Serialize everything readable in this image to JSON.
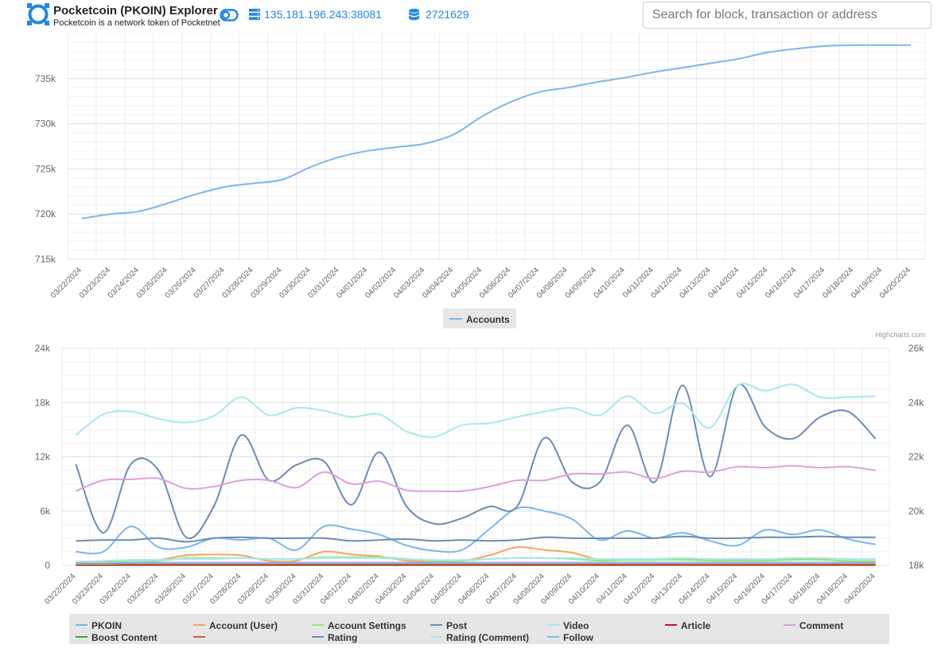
{
  "header": {
    "title": "Pocketcoin (PKOIN) Explorer",
    "subtitle": "Pocketcoin is a network token of Pocketnet",
    "node": "135.181.196.243:38081",
    "block_height": "2721629",
    "search_placeholder": "Search for block, transaction or address"
  },
  "colors": {
    "link": "#1e88e5",
    "logo": "#1e88e5"
  },
  "chart_data": [
    {
      "type": "line",
      "credits": "Highcharts.com",
      "categories": [
        "03/22/2024",
        "03/23/2024",
        "03/24/2024",
        "03/25/2024",
        "03/26/2024",
        "03/27/2024",
        "03/28/2024",
        "03/29/2024",
        "03/30/2024",
        "03/31/2024",
        "04/01/2024",
        "04/02/2024",
        "04/03/2024",
        "04/04/2024",
        "04/05/2024",
        "04/06/2024",
        "04/07/2024",
        "04/08/2024",
        "04/09/2024",
        "04/10/2024",
        "04/11/2024",
        "04/12/2024",
        "04/13/2024",
        "04/14/2024",
        "04/15/2024",
        "04/16/2024",
        "04/17/2024",
        "04/18/2024",
        "04/19/2024",
        "04/20/2024"
      ],
      "yticks": [
        "715k",
        "720k",
        "725k",
        "730k",
        "735k"
      ],
      "ylim": [
        715000,
        740000
      ],
      "legend_position": "bottom-center",
      "series": [
        {
          "name": "Accounts",
          "color": "#7cb5ec",
          "values": [
            719500,
            720000,
            720300,
            721200,
            722200,
            723000,
            723400,
            723800,
            725200,
            726300,
            727000,
            727400,
            727800,
            728800,
            730800,
            732400,
            733500,
            734000,
            734600,
            735100,
            735700,
            736200,
            736700,
            737200,
            737900,
            738300,
            738600,
            738700,
            738700,
            738700
          ]
        }
      ]
    },
    {
      "type": "line",
      "categories": [
        "03/22/2024",
        "03/23/2024",
        "03/24/2024",
        "03/25/2024",
        "03/26/2024",
        "03/27/2024",
        "03/28/2024",
        "03/29/2024",
        "03/30/2024",
        "03/31/2024",
        "04/01/2024",
        "04/02/2024",
        "04/03/2024",
        "04/04/2024",
        "04/05/2024",
        "04/06/2024",
        "04/07/2024",
        "04/08/2024",
        "04/09/2024",
        "04/10/2024",
        "04/11/2024",
        "04/12/2024",
        "04/13/2024",
        "04/14/2024",
        "04/15/2024",
        "04/16/2024",
        "04/17/2024",
        "04/18/2024",
        "04/19/2024",
        "04/20/2024"
      ],
      "yticks_left": [
        "0",
        "6k",
        "12k",
        "18k",
        "24k"
      ],
      "ylim_left": [
        0,
        24000
      ],
      "yticks_right": [
        "18k",
        "20k",
        "22k",
        "24k",
        "26k"
      ],
      "ylim_right": [
        18000,
        26000
      ],
      "legend_position": "bottom",
      "series": [
        {
          "name": "PKOIN",
          "color": "#7cb5ec",
          "axis": "left",
          "values": [
            1500,
            1500,
            4300,
            2000,
            2000,
            3000,
            2800,
            3000,
            1700,
            4300,
            4000,
            3400,
            2200,
            1600,
            1700,
            4000,
            6300,
            6000,
            5100,
            2800,
            3800,
            3000,
            3600,
            2700,
            2200,
            3900,
            3400,
            3900,
            2900,
            2300
          ]
        },
        {
          "name": "Account (User)",
          "color": "#f7a35c",
          "axis": "left",
          "values": [
            300,
            300,
            600,
            600,
            1100,
            1200,
            1100,
            500,
            500,
            1500,
            1200,
            1000,
            500,
            400,
            500,
            1100,
            2000,
            1700,
            1400,
            600,
            600,
            600,
            700,
            600,
            600,
            600,
            700,
            700,
            400,
            400
          ]
        },
        {
          "name": "Account Settings",
          "color": "#90ed7d",
          "axis": "left",
          "values": [
            100,
            200,
            500,
            500,
            800,
            800,
            800,
            700,
            700,
            900,
            900,
            900,
            700,
            500,
            500,
            700,
            800,
            800,
            700,
            500,
            600,
            600,
            600,
            500,
            500,
            500,
            600,
            600,
            500,
            500
          ]
        },
        {
          "name": "Post",
          "color": "#6b8cb4",
          "axis": "left",
          "values": [
            11200,
            3600,
            11200,
            10500,
            3100,
            6500,
            14400,
            9400,
            11100,
            11500,
            6700,
            12500,
            6500,
            4600,
            5200,
            6500,
            6500,
            14100,
            9200,
            9200,
            15500,
            9200,
            19900,
            9800,
            19900,
            15300,
            14000,
            16400,
            17000,
            14000
          ]
        },
        {
          "name": "Video",
          "color": "#a8e8ee",
          "axis": "left",
          "values": [
            14400,
            16700,
            17000,
            16200,
            15800,
            16500,
            18600,
            16600,
            17400,
            17100,
            16400,
            16700,
            14800,
            14200,
            15500,
            15700,
            16400,
            17000,
            17400,
            16600,
            18700,
            16800,
            17900,
            15200,
            19900,
            19300,
            20000,
            18600,
            18600,
            18700
          ]
        },
        {
          "name": "Article",
          "color": "#c8102e",
          "axis": "left",
          "values": [
            100,
            100,
            100,
            100,
            100,
            100,
            100,
            100,
            100,
            100,
            100,
            100,
            100,
            100,
            100,
            100,
            100,
            100,
            100,
            100,
            100,
            100,
            100,
            100,
            100,
            100,
            100,
            100,
            100,
            100
          ]
        },
        {
          "name": "Comment",
          "color": "#e39be6",
          "axis": "left",
          "values": [
            8200,
            9400,
            9500,
            9600,
            8500,
            8700,
            9400,
            9400,
            8600,
            10300,
            9000,
            9300,
            8300,
            8200,
            8200,
            8700,
            9400,
            9400,
            10100,
            10100,
            10300,
            9600,
            10400,
            10300,
            10900,
            10800,
            11000,
            10800,
            10900,
            10500
          ]
        },
        {
          "name": "Boost Content",
          "color": "#3aa52c",
          "axis": "left",
          "values": [
            0,
            0,
            0,
            0,
            0,
            0,
            0,
            0,
            0,
            0,
            0,
            0,
            0,
            0,
            0,
            0,
            0,
            0,
            0,
            0,
            0,
            0,
            0,
            0,
            0,
            0,
            0,
            0,
            0,
            0
          ]
        },
        {
          "name": "",
          "color": "#d9534f",
          "axis": "left",
          "values": [
            50,
            50,
            50,
            50,
            50,
            50,
            50,
            50,
            50,
            50,
            50,
            50,
            50,
            50,
            50,
            50,
            50,
            50,
            50,
            50,
            50,
            50,
            50,
            50,
            50,
            50,
            50,
            50,
            50,
            50
          ]
        },
        {
          "name": "Rating",
          "color": "#6b8cb4",
          "axis": "left",
          "values": [
            2700,
            2800,
            2800,
            3000,
            2600,
            3000,
            3100,
            3000,
            3000,
            3000,
            2700,
            2800,
            2900,
            2700,
            2800,
            2700,
            2800,
            3100,
            3000,
            3000,
            3000,
            3000,
            3200,
            3000,
            3000,
            3100,
            3100,
            3200,
            3100,
            3100
          ]
        },
        {
          "name": "Rating (Comment)",
          "color": "#a8e8ee",
          "axis": "left",
          "values": [
            400,
            500,
            600,
            600,
            700,
            700,
            800,
            700,
            700,
            800,
            800,
            800,
            700,
            600,
            600,
            700,
            800,
            800,
            800,
            700,
            700,
            700,
            800,
            700,
            700,
            700,
            800,
            800,
            700,
            700
          ]
        },
        {
          "name": "Follow",
          "color": "#7cb5ec",
          "axis": "left",
          "values": [
            200,
            200,
            300,
            300,
            300,
            300,
            300,
            300,
            300,
            300,
            300,
            300,
            300,
            300,
            300,
            300,
            300,
            300,
            300,
            300,
            300,
            300,
            300,
            300,
            300,
            300,
            300,
            300,
            300,
            300
          ]
        }
      ]
    }
  ]
}
